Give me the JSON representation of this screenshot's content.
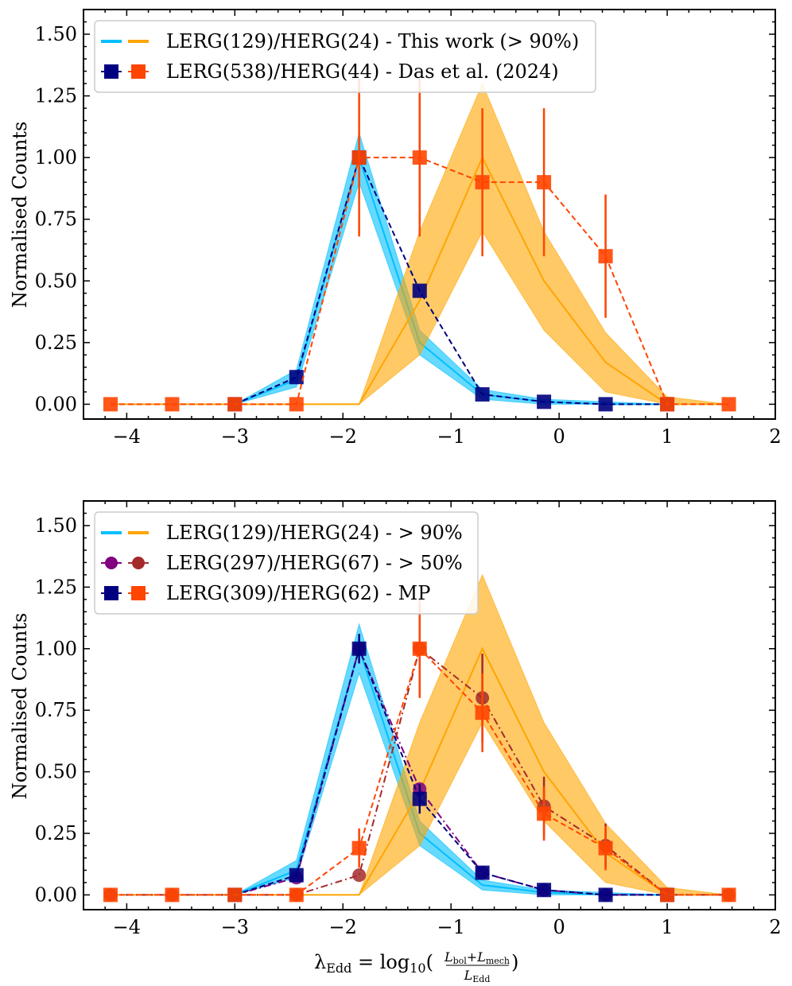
{
  "chart_data": [
    {
      "type": "line",
      "panel": "top",
      "ylabel": "Normalised Counts",
      "xlabel": "",
      "xlim": [
        -4.4,
        2.0
      ],
      "ylim": [
        -0.06,
        1.6
      ],
      "xticks": [
        -4,
        -3,
        -2,
        -1,
        0,
        1,
        2
      ],
      "xtick_labels": [
        "−4",
        "−3",
        "−2",
        "−1",
        "0",
        "1",
        "2"
      ],
      "yticks": [
        0.0,
        0.25,
        0.5,
        0.75,
        1.0,
        1.25,
        1.5
      ],
      "ytick_labels": [
        "0.00",
        "0.25",
        "0.50",
        "0.75",
        "1.00",
        "1.25",
        "1.50"
      ],
      "legend_position": "top-left",
      "legend": [
        {
          "label": "LERG(129)/HERG(24) - This work (> 90%)",
          "markers": [
            "line-blue",
            "line-orange"
          ]
        },
        {
          "label": "LERG(538)/HERG(44) - Das et al. (2024)",
          "markers": [
            "square-navy",
            "square-red"
          ]
        }
      ],
      "x": [
        -4.15,
        -3.58,
        -3.0,
        -2.43,
        -1.85,
        -1.29,
        -0.71,
        -0.14,
        0.43,
        1.0,
        1.57
      ],
      "bands": [
        {
          "name": "LERG this work",
          "color": "#00bfff",
          "x": [
            -3.0,
            -2.43,
            -1.85,
            -1.29,
            -0.71,
            -0.14,
            0.43,
            1.0
          ],
          "center": [
            0.0,
            0.1,
            1.0,
            0.25,
            0.04,
            0.01,
            0.0,
            0.0
          ],
          "lower": [
            0.0,
            0.07,
            0.9,
            0.2,
            0.02,
            0.0,
            0.0,
            0.0
          ],
          "upper": [
            0.0,
            0.14,
            1.1,
            0.3,
            0.06,
            0.02,
            0.01,
            0.0
          ]
        },
        {
          "name": "HERG this work",
          "color": "#ffa500",
          "x": [
            -4.15,
            -1.85,
            -1.29,
            -0.71,
            -0.14,
            0.43,
            1.0,
            1.57
          ],
          "center": [
            0.0,
            0.0,
            0.42,
            1.0,
            0.5,
            0.17,
            0.0,
            0.0
          ],
          "lower": [
            0.0,
            0.0,
            0.2,
            0.7,
            0.3,
            0.05,
            0.0,
            0.0
          ],
          "upper": [
            0.0,
            0.0,
            0.7,
            1.3,
            0.7,
            0.29,
            0.03,
            0.0
          ]
        }
      ],
      "series": [
        {
          "name": "LERG Das et al. (2024)",
          "color": "#000080",
          "marker": "square",
          "linestyle": "dashed",
          "x": [
            -3.0,
            -2.43,
            -1.85,
            -1.29,
            -0.71,
            -0.14,
            0.43,
            1.0
          ],
          "values": [
            0.0,
            0.11,
            1.0,
            0.46,
            0.04,
            0.01,
            0.0,
            0.0
          ],
          "errors": [
            null,
            null,
            null,
            null,
            null,
            null,
            null,
            null
          ]
        },
        {
          "name": "HERG Das et al. (2024)",
          "color": "#ff4500",
          "marker": "square",
          "linestyle": "dashed",
          "x": [
            -4.15,
            -3.58,
            -3.0,
            -2.43,
            -1.85,
            -1.29,
            -0.71,
            -0.14,
            0.43,
            1.0,
            1.57
          ],
          "values": [
            0.0,
            0.0,
            0.0,
            0.0,
            1.0,
            1.0,
            0.9,
            0.9,
            0.6,
            0.0,
            0.0
          ],
          "errors": [
            null,
            null,
            null,
            null,
            0.32,
            0.32,
            0.3,
            0.3,
            0.25,
            null,
            null
          ]
        }
      ]
    },
    {
      "type": "line",
      "panel": "bottom",
      "ylabel": "Normalised Counts",
      "xlabel": "λEdd = log10((Lbol+Lmech)/LEdd)",
      "xlabel_parts": {
        "lambda": "λ",
        "lambda_sub": "Edd",
        "eq": " = log",
        "log_sub": "10",
        "num": "L",
        "num_sub1": "bol",
        "plus": "+L",
        "num_sub2": "mech",
        "den": "L",
        "den_sub": "Edd"
      },
      "xlim": [
        -4.4,
        2.0
      ],
      "ylim": [
        -0.06,
        1.6
      ],
      "xticks": [
        -4,
        -3,
        -2,
        -1,
        0,
        1,
        2
      ],
      "xtick_labels": [
        "−4",
        "−3",
        "−2",
        "−1",
        "0",
        "1",
        "2"
      ],
      "yticks": [
        0.0,
        0.25,
        0.5,
        0.75,
        1.0,
        1.25,
        1.5
      ],
      "ytick_labels": [
        "0.00",
        "0.25",
        "0.50",
        "0.75",
        "1.00",
        "1.25",
        "1.50"
      ],
      "legend_position": "top-left",
      "legend": [
        {
          "label": "LERG(129)/HERG(24) - > 90%",
          "markers": [
            "line-blue",
            "line-orange"
          ]
        },
        {
          "label": "LERG(297)/HERG(67) - > 50%",
          "markers": [
            "circle-purple",
            "circle-brown"
          ]
        },
        {
          "label": "LERG(309)/HERG(62) - MP",
          "markers": [
            "square-navy",
            "square-red"
          ]
        }
      ],
      "bands": [
        {
          "name": "LERG > 90%",
          "color": "#00bfff",
          "x": [
            -3.0,
            -2.43,
            -1.85,
            -1.29,
            -0.71,
            -0.14,
            0.43,
            1.0
          ],
          "center": [
            0.0,
            0.1,
            1.0,
            0.25,
            0.04,
            0.01,
            0.0,
            0.0
          ],
          "lower": [
            0.0,
            0.07,
            0.9,
            0.2,
            0.02,
            0.0,
            0.0,
            0.0
          ],
          "upper": [
            0.0,
            0.14,
            1.1,
            0.3,
            0.06,
            0.02,
            0.01,
            0.0
          ]
        },
        {
          "name": "HERG > 90%",
          "color": "#ffa500",
          "x": [
            -4.15,
            -1.85,
            -1.29,
            -0.71,
            -0.14,
            0.43,
            1.0,
            1.57
          ],
          "center": [
            0.0,
            0.0,
            0.42,
            1.0,
            0.5,
            0.17,
            0.0,
            0.0
          ],
          "lower": [
            0.0,
            0.0,
            0.2,
            0.7,
            0.3,
            0.05,
            0.0,
            0.0
          ],
          "upper": [
            0.0,
            0.0,
            0.7,
            1.3,
            0.7,
            0.29,
            0.03,
            0.0
          ]
        }
      ],
      "series": [
        {
          "name": "LERG > 50%",
          "color": "#800080",
          "marker": "circle",
          "linestyle": "dashdot",
          "x": [
            -3.0,
            -2.43,
            -1.85,
            -1.29,
            -0.71,
            -0.14,
            0.43,
            1.0
          ],
          "values": [
            0.0,
            0.07,
            1.0,
            0.43,
            0.09,
            0.02,
            0.0,
            0.0
          ],
          "errors": [
            null,
            null,
            null,
            null,
            null,
            null,
            null,
            null
          ]
        },
        {
          "name": "HERG > 50%",
          "color": "#a52a2a",
          "marker": "circle",
          "linestyle": "dashdot",
          "x": [
            -4.15,
            -3.58,
            -3.0,
            -2.43,
            -1.85,
            -1.29,
            -0.71,
            -0.14,
            0.43,
            1.0,
            1.57
          ],
          "values": [
            0.0,
            0.0,
            0.0,
            0.0,
            0.08,
            1.0,
            0.8,
            0.36,
            0.2,
            0.0,
            0.0
          ],
          "errors": [
            null,
            null,
            null,
            null,
            null,
            null,
            0.18,
            0.12,
            0.09,
            null,
            null
          ]
        },
        {
          "name": "LERG MP",
          "color": "#000080",
          "marker": "square",
          "linestyle": "dashed",
          "x": [
            -3.0,
            -2.43,
            -1.85,
            -1.29,
            -0.71,
            -0.14,
            0.43,
            1.0
          ],
          "values": [
            0.0,
            0.08,
            1.0,
            0.39,
            0.09,
            0.02,
            0.0,
            0.0
          ],
          "errors": [
            null,
            null,
            0.06,
            0.06,
            null,
            null,
            null,
            null
          ]
        },
        {
          "name": "HERG MP",
          "color": "#ff4500",
          "marker": "square",
          "linestyle": "dashed",
          "x": [
            -4.15,
            -3.58,
            -3.0,
            -2.43,
            -1.85,
            -1.29,
            -0.71,
            -0.14,
            0.43,
            1.0,
            1.57
          ],
          "values": [
            0.0,
            0.0,
            0.0,
            0.0,
            0.19,
            1.0,
            0.74,
            0.33,
            0.19,
            0.0,
            0.0
          ],
          "errors": [
            null,
            null,
            null,
            null,
            0.08,
            0.2,
            0.16,
            0.11,
            0.09,
            null,
            null
          ]
        }
      ]
    }
  ]
}
